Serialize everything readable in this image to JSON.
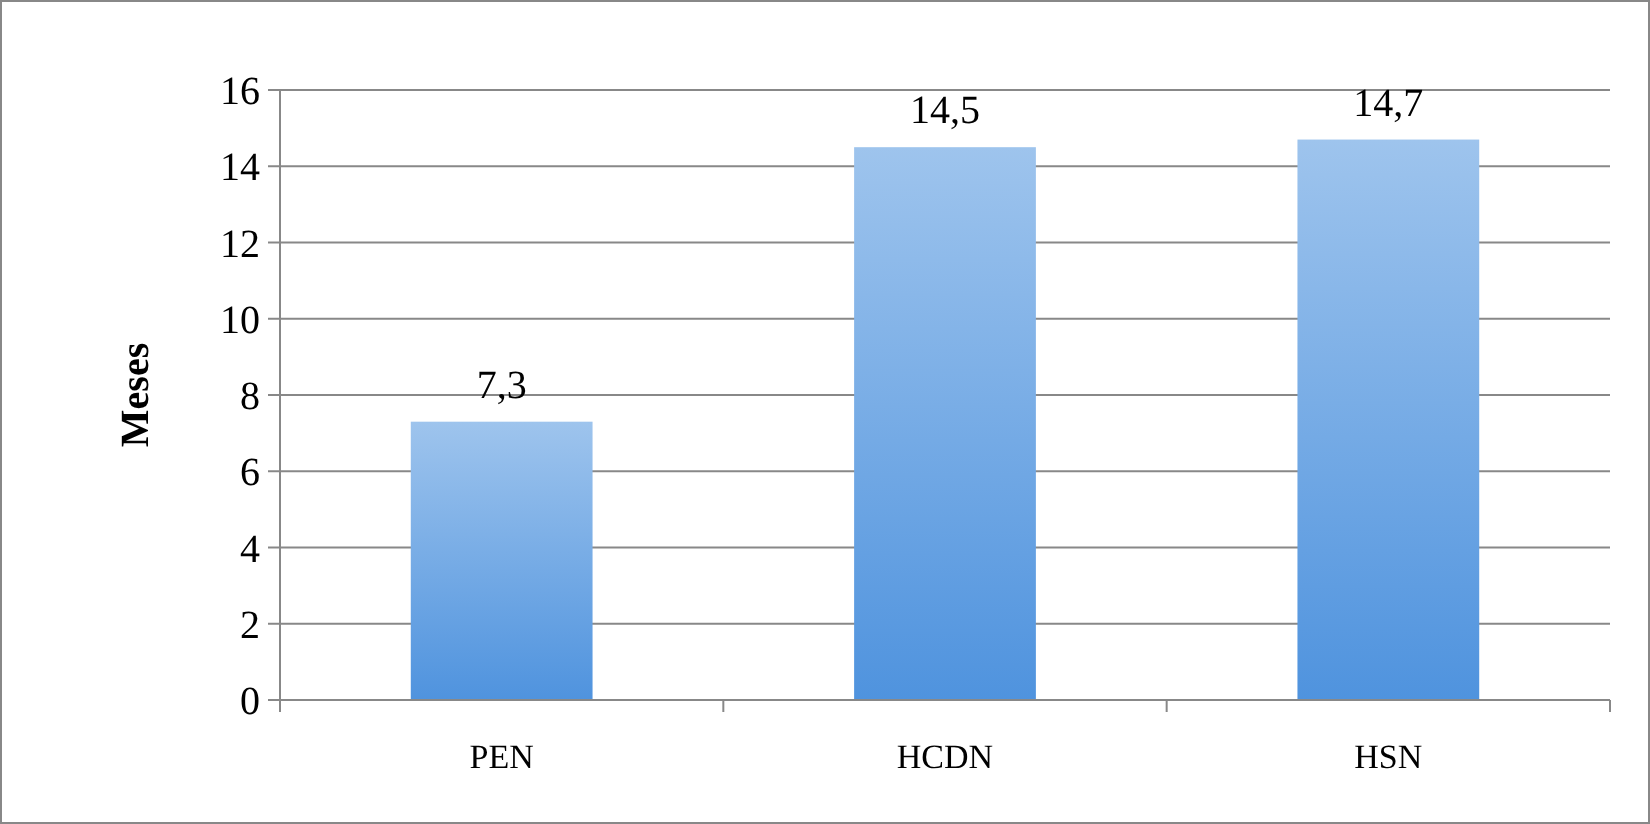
{
  "chart_data": {
    "type": "bar",
    "ylabel": "Meses",
    "categories": [
      "PEN",
      "HCDN",
      "HSN"
    ],
    "values": [
      7.3,
      14.5,
      14.7
    ],
    "value_labels": [
      "7,3",
      "14,5",
      "14,7"
    ],
    "color": "#4f93de",
    "ylim": [
      0,
      16
    ],
    "yticks": [
      0,
      2,
      4,
      6,
      8,
      10,
      12,
      14,
      16
    ],
    "grid": "y"
  }
}
